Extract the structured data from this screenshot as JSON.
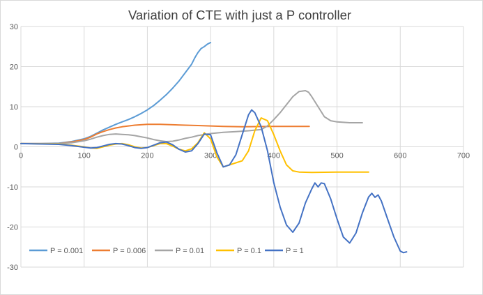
{
  "chart_data": {
    "type": "line",
    "title": "Variation of CTE with just a P controller",
    "xlabel": "",
    "ylabel": "",
    "xlim": [
      0,
      700
    ],
    "ylim": [
      -30,
      30
    ],
    "x_ticks": [
      0,
      100,
      200,
      300,
      400,
      500,
      600,
      700
    ],
    "y_ticks": [
      -30,
      -20,
      -10,
      0,
      10,
      20,
      30
    ],
    "x_tick_labels": [
      "0",
      "100",
      "200",
      "300",
      "400",
      "500",
      "600",
      "700"
    ],
    "y_tick_labels": [
      "-30",
      "-20",
      "-10",
      "0",
      "10",
      "20",
      "30"
    ],
    "grid": true,
    "legend_position": "bottom-left",
    "series": [
      {
        "name": "P = 0.001",
        "color": "#5B9BD5",
        "points": [
          [
            0,
            0.8
          ],
          [
            30,
            0.8
          ],
          [
            60,
            0.9
          ],
          [
            80,
            1.3
          ],
          [
            100,
            2.0
          ],
          [
            110,
            2.6
          ],
          [
            120,
            3.4
          ],
          [
            130,
            4.2
          ],
          [
            140,
            4.9
          ],
          [
            150,
            5.6
          ],
          [
            160,
            6.2
          ],
          [
            170,
            6.8
          ],
          [
            180,
            7.5
          ],
          [
            190,
            8.3
          ],
          [
            200,
            9.2
          ],
          [
            210,
            10.3
          ],
          [
            220,
            11.6
          ],
          [
            230,
            13.0
          ],
          [
            240,
            14.6
          ],
          [
            250,
            16.4
          ],
          [
            260,
            18.5
          ],
          [
            270,
            20.6
          ],
          [
            275,
            22.2
          ],
          [
            280,
            23.5
          ],
          [
            285,
            24.5
          ],
          [
            290,
            25.0
          ],
          [
            295,
            25.6
          ],
          [
            300,
            26.0
          ]
        ]
      },
      {
        "name": "P = 0.006",
        "color": "#ED7D31",
        "points": [
          [
            0,
            0.8
          ],
          [
            60,
            0.8
          ],
          [
            80,
            1.2
          ],
          [
            100,
            1.8
          ],
          [
            110,
            2.4
          ],
          [
            120,
            3.2
          ],
          [
            130,
            3.8
          ],
          [
            140,
            4.3
          ],
          [
            150,
            4.7
          ],
          [
            160,
            5.0
          ],
          [
            170,
            5.2
          ],
          [
            180,
            5.4
          ],
          [
            190,
            5.5
          ],
          [
            200,
            5.6
          ],
          [
            220,
            5.6
          ],
          [
            240,
            5.5
          ],
          [
            260,
            5.4
          ],
          [
            280,
            5.3
          ],
          [
            300,
            5.2
          ],
          [
            320,
            5.1
          ],
          [
            350,
            5.0
          ],
          [
            400,
            5.1
          ],
          [
            456,
            5.1
          ]
        ]
      },
      {
        "name": "P = 0.01",
        "color": "#A5A5A5",
        "points": [
          [
            0,
            0.8
          ],
          [
            60,
            0.8
          ],
          [
            80,
            1.0
          ],
          [
            100,
            1.5
          ],
          [
            110,
            1.9
          ],
          [
            120,
            2.4
          ],
          [
            130,
            2.8
          ],
          [
            140,
            3.1
          ],
          [
            150,
            3.2
          ],
          [
            160,
            3.1
          ],
          [
            170,
            3.0
          ],
          [
            180,
            2.8
          ],
          [
            190,
            2.5
          ],
          [
            200,
            2.2
          ],
          [
            210,
            1.8
          ],
          [
            220,
            1.5
          ],
          [
            230,
            1.3
          ],
          [
            240,
            1.4
          ],
          [
            250,
            1.7
          ],
          [
            260,
            2.1
          ],
          [
            270,
            2.4
          ],
          [
            280,
            2.8
          ],
          [
            300,
            3.3
          ],
          [
            320,
            3.6
          ],
          [
            340,
            3.8
          ],
          [
            360,
            4.0
          ],
          [
            380,
            4.3
          ],
          [
            390,
            5.2
          ],
          [
            400,
            6.8
          ],
          [
            410,
            8.5
          ],
          [
            420,
            10.5
          ],
          [
            430,
            12.5
          ],
          [
            440,
            13.8
          ],
          [
            450,
            14.0
          ],
          [
            455,
            13.6
          ],
          [
            460,
            12.5
          ],
          [
            470,
            10.0
          ],
          [
            480,
            7.5
          ],
          [
            490,
            6.5
          ],
          [
            500,
            6.2
          ],
          [
            520,
            6.0
          ],
          [
            540,
            6.0
          ]
        ]
      },
      {
        "name": "P = 0.1",
        "color": "#FFC000",
        "points": [
          [
            0,
            0.8
          ],
          [
            60,
            0.7
          ],
          [
            80,
            0.4
          ],
          [
            100,
            0.0
          ],
          [
            110,
            -0.3
          ],
          [
            120,
            -0.4
          ],
          [
            130,
            0.0
          ],
          [
            140,
            0.4
          ],
          [
            150,
            0.7
          ],
          [
            160,
            0.8
          ],
          [
            170,
            0.5
          ],
          [
            180,
            0.0
          ],
          [
            190,
            -0.3
          ],
          [
            200,
            -0.2
          ],
          [
            210,
            0.3
          ],
          [
            220,
            0.8
          ],
          [
            230,
            0.8
          ],
          [
            240,
            0.2
          ],
          [
            250,
            -0.6
          ],
          [
            260,
            -1.0
          ],
          [
            270,
            -0.5
          ],
          [
            280,
            1.0
          ],
          [
            290,
            3.5
          ],
          [
            300,
            2.0
          ],
          [
            310,
            -2.5
          ],
          [
            320,
            -5.0
          ],
          [
            330,
            -4.5
          ],
          [
            340,
            -4.0
          ],
          [
            350,
            -3.5
          ],
          [
            360,
            -1.0
          ],
          [
            370,
            4.0
          ],
          [
            380,
            7.2
          ],
          [
            390,
            6.5
          ],
          [
            400,
            3.0
          ],
          [
            410,
            -1.0
          ],
          [
            420,
            -4.5
          ],
          [
            430,
            -6.0
          ],
          [
            440,
            -6.3
          ],
          [
            460,
            -6.4
          ],
          [
            500,
            -6.3
          ],
          [
            550,
            -6.3
          ]
        ]
      },
      {
        "name": "P = 1",
        "color": "#4472C4",
        "points": [
          [
            0,
            0.8
          ],
          [
            60,
            0.6
          ],
          [
            80,
            0.3
          ],
          [
            100,
            -0.1
          ],
          [
            110,
            -0.3
          ],
          [
            120,
            -0.2
          ],
          [
            130,
            0.2
          ],
          [
            140,
            0.6
          ],
          [
            150,
            0.8
          ],
          [
            160,
            0.7
          ],
          [
            170,
            0.3
          ],
          [
            180,
            -0.2
          ],
          [
            190,
            -0.4
          ],
          [
            200,
            -0.2
          ],
          [
            210,
            0.4
          ],
          [
            220,
            1.0
          ],
          [
            230,
            1.2
          ],
          [
            240,
            0.5
          ],
          [
            250,
            -0.6
          ],
          [
            260,
            -1.3
          ],
          [
            270,
            -1.0
          ],
          [
            280,
            0.8
          ],
          [
            290,
            3.2
          ],
          [
            300,
            3.0
          ],
          [
            310,
            -1.5
          ],
          [
            320,
            -5.0
          ],
          [
            330,
            -4.5
          ],
          [
            340,
            -2.0
          ],
          [
            350,
            3.0
          ],
          [
            360,
            8.0
          ],
          [
            365,
            9.2
          ],
          [
            370,
            8.5
          ],
          [
            380,
            5.0
          ],
          [
            390,
            -1.0
          ],
          [
            400,
            -9.0
          ],
          [
            410,
            -15.0
          ],
          [
            420,
            -19.5
          ],
          [
            430,
            -21.3
          ],
          [
            440,
            -19.0
          ],
          [
            450,
            -14.0
          ],
          [
            460,
            -10.5
          ],
          [
            465,
            -9.0
          ],
          [
            470,
            -10.0
          ],
          [
            475,
            -9.0
          ],
          [
            480,
            -9.2
          ],
          [
            490,
            -13.0
          ],
          [
            500,
            -18.0
          ],
          [
            510,
            -22.5
          ],
          [
            520,
            -24.0
          ],
          [
            530,
            -21.5
          ],
          [
            540,
            -16.5
          ],
          [
            550,
            -12.5
          ],
          [
            555,
            -11.6
          ],
          [
            560,
            -12.6
          ],
          [
            565,
            -12.0
          ],
          [
            570,
            -13.5
          ],
          [
            580,
            -18.0
          ],
          [
            590,
            -22.5
          ],
          [
            600,
            -26.0
          ],
          [
            605,
            -26.4
          ],
          [
            610,
            -26.2
          ]
        ]
      }
    ]
  }
}
